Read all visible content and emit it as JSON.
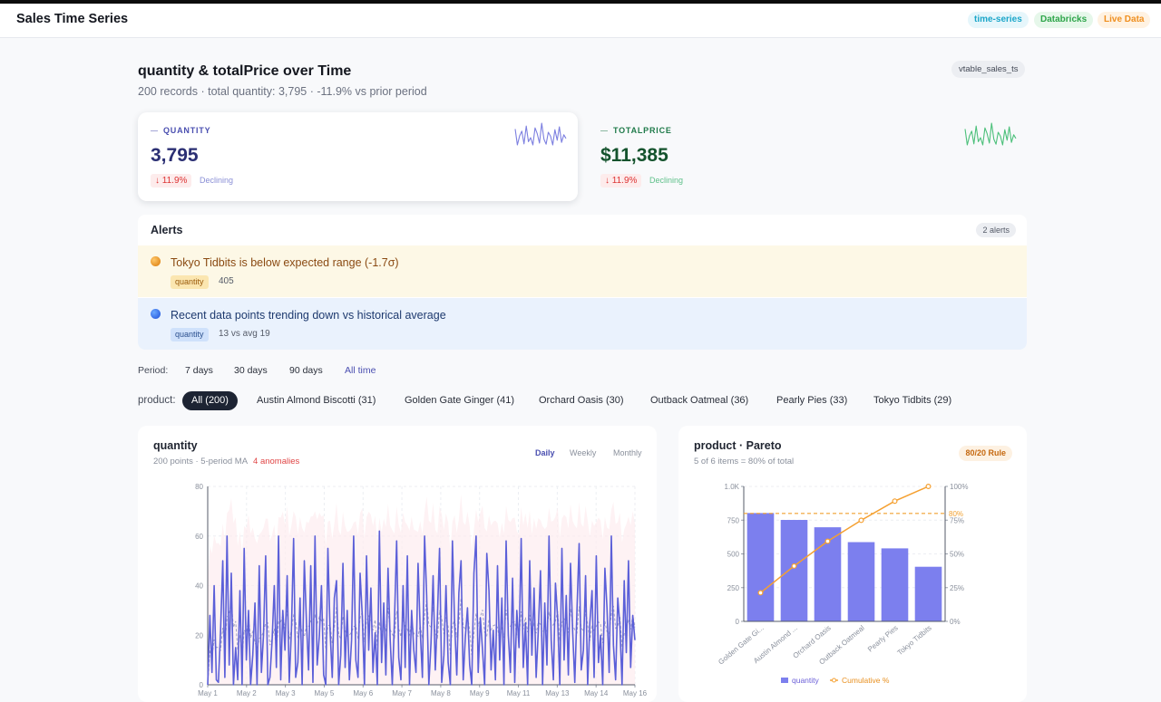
{
  "app": {
    "title": "Sales Time Series",
    "tags": [
      "time-series",
      "Databricks",
      "Live Data"
    ]
  },
  "page": {
    "title": "quantity & totalPrice over Time",
    "subtitle": "200 records · total quantity: 3,795 · -11.9% vs prior period",
    "table_tag": "vtable_sales_ts"
  },
  "kpis": [
    {
      "label": "QUANTITY",
      "value": "3,795",
      "change": "↓ 11.9%",
      "trend": "Declining",
      "color": "#7c7fe0"
    },
    {
      "label": "TOTALPRICE",
      "value": "$11,385",
      "change": "↓ 11.9%",
      "trend": "Declining",
      "color": "#4cc07a"
    }
  ],
  "alerts": {
    "title": "Alerts",
    "count": "2 alerts",
    "items": [
      {
        "level": "warning",
        "message": "Tokyo Tidbits is below expected range (-1.7σ)",
        "tag": "quantity",
        "detail": "405"
      },
      {
        "level": "info",
        "message": "Recent data points trending down vs historical average",
        "tag": "quantity",
        "detail": "13 vs avg 19"
      }
    ]
  },
  "period": {
    "label": "Period:",
    "options": [
      "7 days",
      "30 days",
      "90 days",
      "All time"
    ],
    "active": "All time"
  },
  "product_filter": {
    "label": "product:",
    "options": [
      "All (200)",
      "Austin Almond Biscotti (31)",
      "Golden Gate Ginger (41)",
      "Orchard Oasis (30)",
      "Outback Oatmeal (36)",
      "Pearly Pies (33)",
      "Tokyo Tidbits (29)"
    ],
    "active": "All (200)"
  },
  "ts_panel": {
    "title": "quantity",
    "subtitle": "200 points · 5-period MA",
    "anomalies": "4 anomalies",
    "granularity": [
      "Daily",
      "Weekly",
      "Monthly"
    ],
    "active_granularity": "Daily"
  },
  "pareto_panel": {
    "title": "product · Pareto",
    "subtitle": "5 of 6 items = 80% of total",
    "badge": "80/20 Rule"
  },
  "chart_data": [
    {
      "type": "line",
      "series_name": "quantity",
      "x_ticks": [
        "May 1",
        "May 2",
        "May 3",
        "May 5",
        "May 6",
        "May 7",
        "May 8",
        "May 9",
        "May 11",
        "May 13",
        "May 14",
        "May 16"
      ],
      "y_ticks": [
        0,
        20,
        40,
        60,
        80
      ],
      "ylim": [
        0,
        80
      ],
      "values": [
        0,
        28,
        5,
        40,
        2,
        1,
        22,
        50,
        3,
        60,
        8,
        45,
        0,
        15,
        2,
        38,
        0,
        55,
        10,
        30,
        0,
        12,
        33,
        0,
        48,
        5,
        20,
        52,
        0,
        3,
        18,
        40,
        7,
        60,
        2,
        30,
        14,
        44,
        1,
        22,
        59,
        3,
        9,
        35,
        0,
        50,
        25,
        6,
        48,
        1,
        60,
        8,
        20,
        40,
        4,
        0,
        55,
        22,
        3,
        35,
        42,
        0,
        12,
        49,
        7,
        30,
        2,
        18,
        60,
        10,
        3,
        45,
        28,
        0,
        52,
        14,
        39,
        5,
        21,
        0,
        62,
        9,
        33,
        4,
        47,
        18,
        0,
        26,
        58,
        11,
        2,
        40,
        7,
        52,
        0,
        30,
        14,
        5,
        49,
        22,
        3,
        60,
        36,
        0,
        17,
        44,
        6,
        28,
        55,
        1,
        12,
        40,
        9,
        0,
        58,
        25,
        4,
        37,
        50,
        2,
        19,
        31,
        8,
        0,
        45,
        60,
        5,
        27,
        14,
        0,
        53,
        38,
        6,
        22,
        2,
        48,
        10,
        35,
        0,
        58,
        20,
        5,
        43,
        1,
        30,
        15,
        59,
        7,
        25,
        0,
        50,
        12,
        39,
        3,
        22,
        46,
        0,
        33,
        8,
        60,
        18,
        2,
        41,
        27,
        0,
        55,
        10,
        36,
        4,
        49,
        21,
        1,
        30,
        57,
        6,
        14,
        44,
        0,
        25,
        38,
        3,
        52,
        9,
        20,
        0,
        47,
        31,
        5,
        60,
        16,
        2,
        35,
        24,
        0,
        42,
        13,
        50,
        7,
        28,
        18
      ],
      "ma_period": 5
    },
    {
      "type": "bar",
      "series": [
        {
          "name": "quantity",
          "values": [
            803,
            752,
            697,
            587,
            541,
            405
          ]
        },
        {
          "name": "Cumulative %",
          "values": [
            21.2,
            41.0,
            59.4,
            74.9,
            89.1,
            100
          ]
        }
      ],
      "categories": [
        "Golden Gate Gi...",
        "Austin Almond ...",
        "Orchard Oasis",
        "Outback Oatmeal",
        "Pearly Pies",
        "Tokyo Tidbits"
      ],
      "left_ticks": [
        "0",
        "250",
        "500",
        "750",
        "1.0K"
      ],
      "right_ticks": [
        "0%",
        "25%",
        "50%",
        "75%",
        "100%"
      ],
      "ylim": [
        0,
        1000
      ],
      "threshold": 80,
      "threshold_label": "80%",
      "legend": [
        "quantity",
        "Cumulative %"
      ]
    }
  ],
  "colors": {
    "accent": "#6366f1",
    "bar": "#7c7fee",
    "cumulative": "#f5a030",
    "anomaly": "#e04545"
  }
}
